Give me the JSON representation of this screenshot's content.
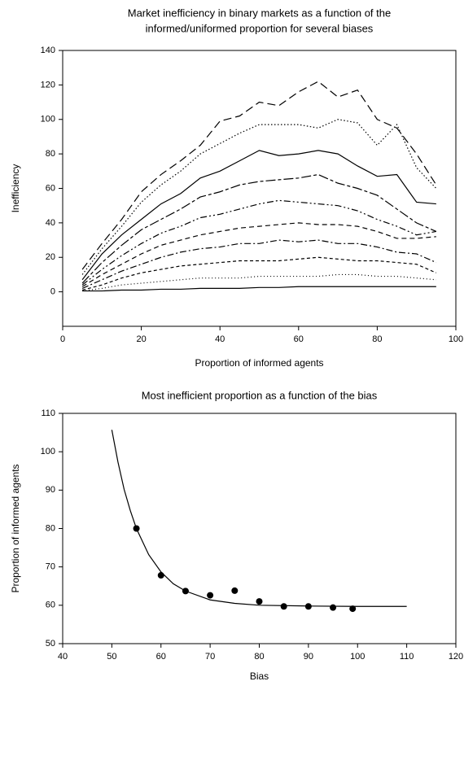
{
  "chart_data": [
    {
      "type": "line",
      "title": [
        "Market inefficiency in binary markets as a function of the",
        "informed/uniformed proportion for several biases"
      ],
      "xlabel": "Proportion of informed agents",
      "ylabel": "Inefficiency",
      "xlim": [
        0,
        100
      ],
      "xticks": [
        0,
        20,
        40,
        60,
        80,
        100
      ],
      "ylim": [
        -20,
        140
      ],
      "yticks": [
        0,
        20,
        40,
        60,
        80,
        100,
        120,
        140
      ],
      "x": [
        5,
        10,
        15,
        20,
        25,
        30,
        35,
        40,
        45,
        50,
        55,
        60,
        65,
        70,
        75,
        80,
        85,
        90,
        95
      ],
      "series": [
        {
          "color": "#000000",
          "dash": "10,5",
          "values": [
            13,
            28,
            42,
            58,
            68,
            76,
            85,
            99,
            102,
            110,
            108,
            116,
            122,
            113,
            117,
            100,
            95,
            80,
            62
          ]
        },
        {
          "color": "#000000",
          "dash": "1.5,2.5",
          "values": [
            10,
            25,
            38,
            52,
            62,
            70,
            80,
            86,
            92,
            97,
            97,
            97,
            95,
            100,
            98,
            85,
            97,
            72,
            60
          ]
        },
        {
          "color": "#000000",
          "values": [
            7,
            22,
            33,
            42,
            51,
            57,
            66,
            70,
            76,
            82,
            79,
            80,
            82,
            80,
            73,
            67,
            68,
            52,
            51
          ]
        },
        {
          "color": "#000000",
          "dash": "12,3,4,3",
          "values": [
            5,
            17,
            27,
            36,
            42,
            48,
            55,
            58,
            62,
            64,
            65,
            66,
            68,
            63,
            60,
            56,
            48,
            40,
            35
          ]
        },
        {
          "color": "#000000",
          "dash": "8,3,2,3,2,3",
          "values": [
            4,
            13,
            21,
            28,
            34,
            38,
            43,
            45,
            48,
            51,
            53,
            52,
            51,
            50,
            47,
            42,
            38,
            33,
            35
          ]
        },
        {
          "color": "#000000",
          "dash": "6,4",
          "values": [
            3,
            10,
            16,
            22,
            27,
            30,
            33,
            35,
            37,
            38,
            39,
            40,
            39,
            39,
            38,
            35,
            31,
            31,
            32
          ]
        },
        {
          "color": "#000000",
          "dash": "8,3,2,3",
          "values": [
            2,
            7,
            12,
            16,
            20,
            23,
            25,
            26,
            28,
            28,
            30,
            29,
            30,
            28,
            28,
            26,
            23,
            22,
            17
          ]
        },
        {
          "color": "#000000",
          "dash": "4,3",
          "values": [
            1,
            4,
            8,
            11,
            13,
            15,
            16,
            17,
            18,
            18,
            18,
            19,
            20,
            19,
            18,
            18,
            17,
            16,
            11
          ]
        },
        {
          "color": "#000000",
          "dash": "1,3",
          "values": [
            0.5,
            2,
            4,
            5,
            6,
            7,
            8,
            8,
            8,
            9,
            9,
            9,
            9,
            10,
            10,
            9,
            9,
            8,
            7
          ]
        },
        {
          "color": "#000000",
          "values": [
            0.5,
            0.5,
            1,
            1,
            1.5,
            1.5,
            2,
            2,
            2,
            2.5,
            2.5,
            3,
            3,
            3,
            3,
            3,
            3,
            3,
            3
          ]
        }
      ]
    },
    {
      "type": "scatter",
      "title": [
        "Most inefficient proportion as a function of the bias"
      ],
      "xlabel": "Bias",
      "ylabel": "Proportion of informed agents",
      "xlim": [
        40,
        120
      ],
      "xticks": [
        40,
        50,
        60,
        70,
        80,
        90,
        100,
        110,
        120
      ],
      "ylim": [
        50,
        110
      ],
      "yticks": [
        50,
        60,
        70,
        80,
        90,
        100,
        110
      ],
      "color": "#000000",
      "x": [
        55,
        60,
        65,
        70,
        75,
        80,
        85,
        90,
        95,
        99
      ],
      "values": [
        80,
        67.8,
        63.7,
        62.6,
        63.8,
        61,
        59.7,
        59.7,
        59.4,
        59.1
      ],
      "fit": {
        "x": [
          50,
          51.25,
          52.5,
          53.75,
          55,
          57.5,
          60,
          62.5,
          65,
          70,
          75,
          80,
          90,
          100,
          110
        ],
        "values": [
          105.7,
          97.3,
          90.2,
          84.7,
          80.0,
          73.2,
          68.7,
          65.6,
          63.7,
          61.4,
          60.5,
          60.0,
          59.8,
          59.7,
          59.7
        ]
      }
    }
  ]
}
